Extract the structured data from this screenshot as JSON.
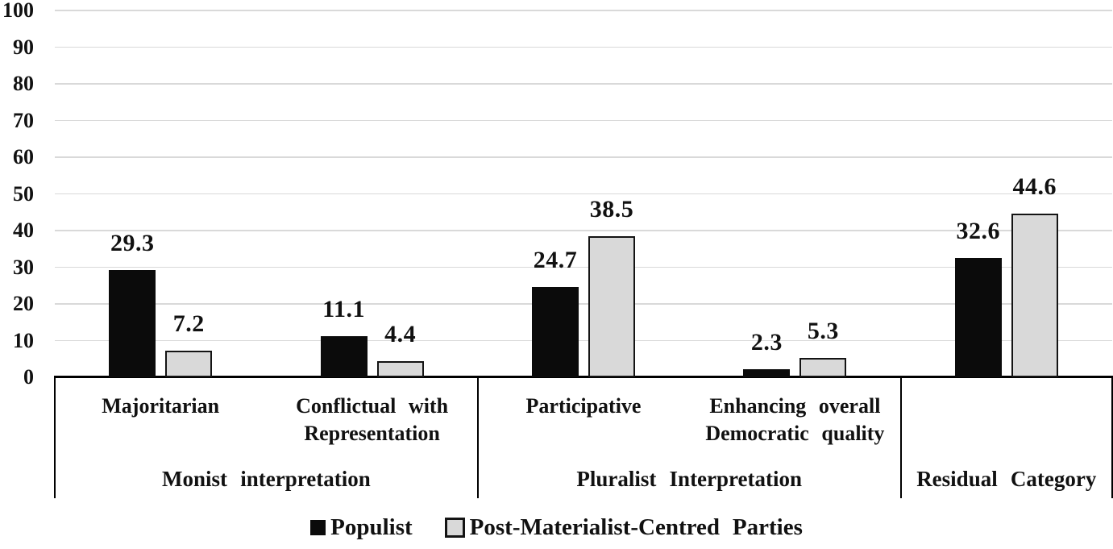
{
  "chart_data": {
    "type": "bar",
    "title": "",
    "xlabel": "",
    "ylabel": "",
    "ylim": [
      0,
      100
    ],
    "yticks": [
      0,
      10,
      20,
      30,
      40,
      50,
      60,
      70,
      80,
      90,
      100
    ],
    "grid": true,
    "legend_position": "bottom",
    "categories": [
      [
        "Majoritarian"
      ],
      [
        "Conflictual with",
        "Representation"
      ],
      [
        "Participative"
      ],
      [
        "Enhancing overall",
        "Democratic quality"
      ],
      []
    ],
    "groups": [
      {
        "label": "Monist interpretation",
        "start": 0,
        "end": 2
      },
      {
        "label": "Pluralist Interpretation",
        "start": 2,
        "end": 4
      },
      {
        "label": "Residual Category",
        "start": 4,
        "end": 5
      }
    ],
    "series": [
      {
        "name": "Populist",
        "color": "#0b0b0b",
        "values": [
          29.3,
          11.1,
          24.7,
          2.3,
          32.6
        ]
      },
      {
        "name": "Post-Materialist-Centred Parties",
        "color": "#d9d9d9",
        "values": [
          7.2,
          4.4,
          38.5,
          5.3,
          44.6
        ]
      }
    ],
    "colors": {
      "grid": "#d9d9d9",
      "axis": "#000000",
      "bar_border": "#141414",
      "text": "#111111",
      "background": "#ffffff"
    }
  }
}
